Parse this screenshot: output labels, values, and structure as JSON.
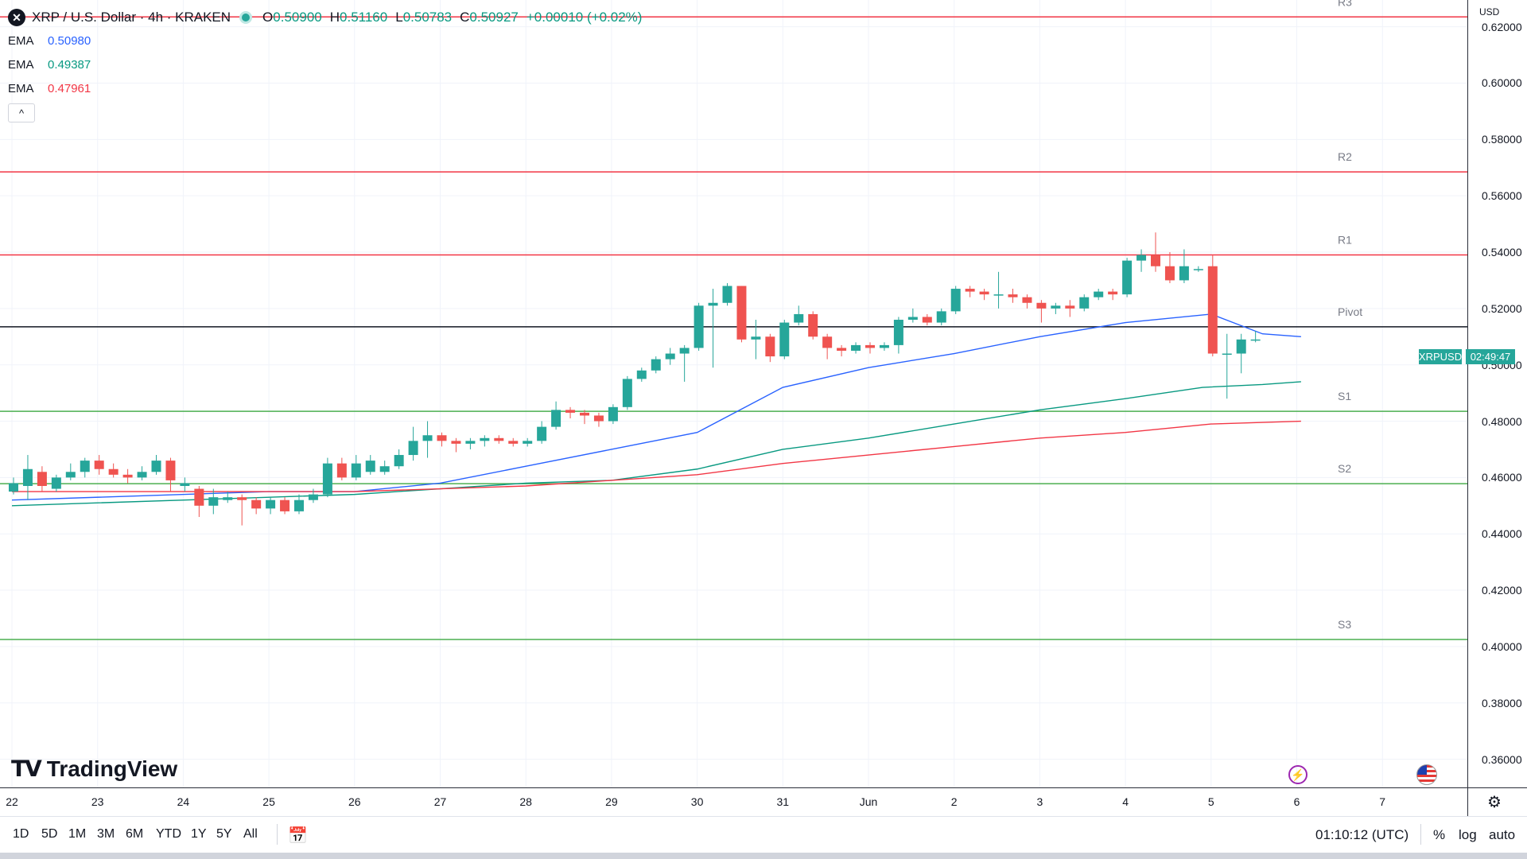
{
  "header": {
    "symbol_icon": "xrp-logo-icon",
    "title": "XRP / U.S. Dollar · 4h · KRAKEN",
    "ohlc": [
      {
        "label": "O",
        "value": "0.50900"
      },
      {
        "label": "H",
        "value": "0.51160"
      },
      {
        "label": "L",
        "value": "0.50783"
      },
      {
        "label": "C",
        "value": "0.50927"
      }
    ],
    "change": "+0.00010 (+0.02%)"
  },
  "indicators": [
    {
      "name": "EMA",
      "value": "0.50980",
      "color": "#2962ff"
    },
    {
      "name": "EMA",
      "value": "0.49387",
      "color": "#089981"
    },
    {
      "name": "EMA",
      "value": "0.47961",
      "color": "#f23645"
    }
  ],
  "collapse_glyph": "^",
  "price_axis": {
    "currency": "USD",
    "labels": [
      "0.62000",
      "0.60000",
      "0.58000",
      "0.56000",
      "0.54000",
      "0.52000",
      "0.50000",
      "0.48000",
      "0.46000",
      "0.44000",
      "0.42000",
      "0.40000",
      "0.38000",
      "0.36000"
    ]
  },
  "current_price": {
    "symbol": "XRPUSD",
    "countdown": "02:49:47"
  },
  "time_axis": {
    "labels": [
      "22",
      "23",
      "24",
      "25",
      "26",
      "27",
      "28",
      "29",
      "30",
      "31",
      "Jun",
      "2",
      "3",
      "4",
      "5",
      "6",
      "7"
    ]
  },
  "branding": {
    "logo_text": "TradingView"
  },
  "bottom_toolbar": {
    "timeframes": [
      "1D",
      "5D",
      "1M",
      "3M",
      "6M",
      "YTD",
      "1Y",
      "5Y",
      "All"
    ],
    "clock": "01:10:12 (UTC)",
    "options": [
      "%",
      "log",
      "auto"
    ]
  },
  "chart_data": {
    "type": "candlestick",
    "title": "XRP / U.S. Dollar · 4h · KRAKEN",
    "ylim": [
      0.35,
      0.6295
    ],
    "x_range_days": [
      0,
      17
    ],
    "levels": [
      {
        "name": "R3",
        "value": 0.6235,
        "color": "#f23645"
      },
      {
        "name": "R2",
        "value": 0.5685,
        "color": "#f23645"
      },
      {
        "name": "R1",
        "value": 0.539,
        "color": "#f23645"
      },
      {
        "name": "Pivot",
        "value": 0.5135,
        "color": "#131722"
      },
      {
        "name": "S1",
        "value": 0.4835,
        "color": "#4caf50"
      },
      {
        "name": "S2",
        "value": 0.4578,
        "color": "#4caf50"
      },
      {
        "name": "S3",
        "value": 0.4025,
        "color": "#4caf50"
      }
    ],
    "candles": [
      [
        0.455,
        0.458,
        0.454,
        0.46
      ],
      [
        0.457,
        0.463,
        0.452,
        0.468
      ],
      [
        0.462,
        0.457,
        0.455,
        0.464
      ],
      [
        0.456,
        0.46,
        0.455,
        0.461
      ],
      [
        0.46,
        0.462,
        0.459,
        0.465
      ],
      [
        0.462,
        0.466,
        0.46,
        0.467
      ],
      [
        0.466,
        0.463,
        0.461,
        0.468
      ],
      [
        0.463,
        0.461,
        0.46,
        0.465
      ],
      [
        0.461,
        0.46,
        0.458,
        0.463
      ],
      [
        0.46,
        0.462,
        0.459,
        0.464
      ],
      [
        0.462,
        0.466,
        0.461,
        0.468
      ],
      [
        0.466,
        0.459,
        0.455,
        0.467
      ],
      [
        0.457,
        0.458,
        0.455,
        0.46
      ],
      [
        0.456,
        0.45,
        0.446,
        0.457
      ],
      [
        0.45,
        0.453,
        0.447,
        0.456
      ],
      [
        0.452,
        0.453,
        0.451,
        0.455
      ],
      [
        0.453,
        0.452,
        0.443,
        0.454
      ],
      [
        0.452,
        0.449,
        0.447,
        0.453
      ],
      [
        0.449,
        0.452,
        0.447,
        0.453
      ],
      [
        0.452,
        0.448,
        0.447,
        0.453
      ],
      [
        0.448,
        0.452,
        0.447,
        0.454
      ],
      [
        0.452,
        0.454,
        0.451,
        0.456
      ],
      [
        0.454,
        0.465,
        0.453,
        0.467
      ],
      [
        0.465,
        0.46,
        0.459,
        0.467
      ],
      [
        0.46,
        0.465,
        0.459,
        0.468
      ],
      [
        0.462,
        0.466,
        0.461,
        0.468
      ],
      [
        0.462,
        0.464,
        0.461,
        0.466
      ],
      [
        0.464,
        0.468,
        0.463,
        0.47
      ],
      [
        0.468,
        0.473,
        0.466,
        0.478
      ],
      [
        0.473,
        0.475,
        0.467,
        0.48
      ],
      [
        0.475,
        0.473,
        0.471,
        0.476
      ],
      [
        0.473,
        0.472,
        0.469,
        0.474
      ],
      [
        0.472,
        0.473,
        0.47,
        0.474
      ],
      [
        0.473,
        0.474,
        0.471,
        0.475
      ],
      [
        0.474,
        0.473,
        0.472,
        0.475
      ],
      [
        0.473,
        0.472,
        0.471,
        0.474
      ],
      [
        0.472,
        0.473,
        0.471,
        0.474
      ],
      [
        0.473,
        0.478,
        0.472,
        0.48
      ],
      [
        0.478,
        0.484,
        0.477,
        0.487
      ],
      [
        0.484,
        0.483,
        0.481,
        0.485
      ],
      [
        0.483,
        0.482,
        0.479,
        0.484
      ],
      [
        0.482,
        0.48,
        0.478,
        0.483
      ],
      [
        0.48,
        0.485,
        0.479,
        0.486
      ],
      [
        0.485,
        0.495,
        0.484,
        0.496
      ],
      [
        0.495,
        0.498,
        0.494,
        0.499
      ],
      [
        0.498,
        0.502,
        0.497,
        0.503
      ],
      [
        0.502,
        0.504,
        0.5,
        0.506
      ],
      [
        0.504,
        0.506,
        0.494,
        0.507
      ],
      [
        0.506,
        0.521,
        0.505,
        0.522
      ],
      [
        0.521,
        0.522,
        0.499,
        0.527
      ],
      [
        0.522,
        0.528,
        0.521,
        0.529
      ],
      [
        0.528,
        0.509,
        0.508,
        0.528
      ],
      [
        0.509,
        0.51,
        0.502,
        0.516
      ],
      [
        0.51,
        0.503,
        0.501,
        0.511
      ],
      [
        0.503,
        0.515,
        0.502,
        0.516
      ],
      [
        0.515,
        0.518,
        0.514,
        0.521
      ],
      [
        0.518,
        0.51,
        0.509,
        0.519
      ],
      [
        0.51,
        0.506,
        0.502,
        0.511
      ],
      [
        0.506,
        0.505,
        0.503,
        0.507
      ],
      [
        0.505,
        0.507,
        0.504,
        0.508
      ],
      [
        0.507,
        0.506,
        0.504,
        0.508
      ],
      [
        0.506,
        0.507,
        0.505,
        0.508
      ],
      [
        0.507,
        0.516,
        0.504,
        0.517
      ],
      [
        0.516,
        0.517,
        0.515,
        0.52
      ],
      [
        0.517,
        0.515,
        0.514,
        0.518
      ],
      [
        0.515,
        0.519,
        0.514,
        0.52
      ],
      [
        0.519,
        0.527,
        0.518,
        0.528
      ],
      [
        0.527,
        0.526,
        0.524,
        0.528
      ],
      [
        0.526,
        0.525,
        0.523,
        0.527
      ],
      [
        0.525,
        0.525,
        0.52,
        0.533
      ],
      [
        0.525,
        0.524,
        0.522,
        0.527
      ],
      [
        0.524,
        0.522,
        0.52,
        0.525
      ],
      [
        0.522,
        0.52,
        0.515,
        0.523
      ],
      [
        0.52,
        0.521,
        0.518,
        0.522
      ],
      [
        0.521,
        0.52,
        0.517,
        0.523
      ],
      [
        0.52,
        0.524,
        0.519,
        0.525
      ],
      [
        0.524,
        0.526,
        0.523,
        0.527
      ],
      [
        0.526,
        0.525,
        0.523,
        0.527
      ],
      [
        0.525,
        0.537,
        0.524,
        0.538
      ],
      [
        0.537,
        0.539,
        0.533,
        0.541
      ],
      [
        0.539,
        0.535,
        0.533,
        0.547
      ],
      [
        0.535,
        0.53,
        0.529,
        0.54
      ],
      [
        0.53,
        0.535,
        0.529,
        0.541
      ],
      [
        0.534,
        0.534,
        0.533,
        0.535
      ],
      [
        0.535,
        0.504,
        0.503,
        0.539
      ],
      [
        0.504,
        0.504,
        0.488,
        0.511
      ],
      [
        0.504,
        0.509,
        0.497,
        0.511
      ],
      [
        0.509,
        0.509,
        0.508,
        0.512
      ]
    ],
    "series": [
      {
        "name": "EMA",
        "color": "#2962ff",
        "points": [
          [
            0,
            0.452
          ],
          [
            3,
            0.455
          ],
          [
            4,
            0.455
          ],
          [
            5,
            0.458
          ],
          [
            6,
            0.464
          ],
          [
            7,
            0.47
          ],
          [
            8,
            0.476
          ],
          [
            8.5,
            0.484
          ],
          [
            9,
            0.492
          ],
          [
            10,
            0.499
          ],
          [
            11,
            0.504
          ],
          [
            12,
            0.51
          ],
          [
            13,
            0.515
          ],
          [
            14,
            0.518
          ],
          [
            14.6,
            0.511
          ],
          [
            15.05,
            0.51
          ]
        ]
      },
      {
        "name": "EMA",
        "color": "#089981",
        "points": [
          [
            0,
            0.45
          ],
          [
            3,
            0.453
          ],
          [
            4,
            0.454
          ],
          [
            5,
            0.456
          ],
          [
            6,
            0.458
          ],
          [
            7,
            0.459
          ],
          [
            8,
            0.463
          ],
          [
            9,
            0.47
          ],
          [
            10,
            0.474
          ],
          [
            11,
            0.479
          ],
          [
            12,
            0.484
          ],
          [
            13,
            0.488
          ],
          [
            13.9,
            0.492
          ],
          [
            14.6,
            0.493
          ],
          [
            15.05,
            0.494
          ]
        ]
      },
      {
        "name": "EMA",
        "color": "#f23645",
        "points": [
          [
            0,
            0.455
          ],
          [
            3,
            0.455
          ],
          [
            4,
            0.455
          ],
          [
            5,
            0.456
          ],
          [
            6,
            0.457
          ],
          [
            7,
            0.459
          ],
          [
            8,
            0.461
          ],
          [
            9,
            0.465
          ],
          [
            10,
            0.468
          ],
          [
            11,
            0.471
          ],
          [
            12,
            0.474
          ],
          [
            13,
            0.476
          ],
          [
            14,
            0.479
          ],
          [
            15.05,
            0.48
          ]
        ]
      }
    ],
    "xlabel": "",
    "ylabel": "USD"
  }
}
